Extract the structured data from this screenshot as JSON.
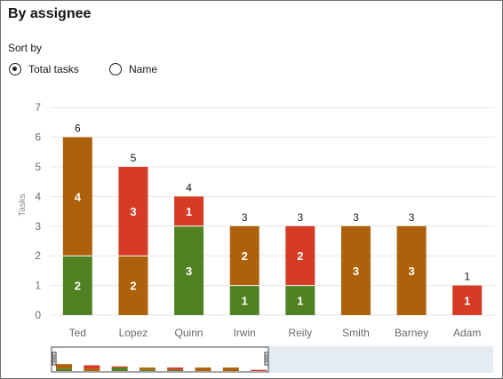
{
  "title": "By assignee",
  "sort": {
    "label": "Sort by",
    "options": [
      {
        "label": "Total tasks",
        "selected": true
      },
      {
        "label": "Name",
        "selected": false
      }
    ]
  },
  "colors": {
    "green": "#508223",
    "brown": "#ae610b",
    "red": "#d63b25",
    "gridline": "#e5e5e5",
    "overview_bg": "#e4ecf1"
  },
  "chart_data": {
    "type": "bar",
    "stacked": true,
    "ylabel": "Tasks",
    "ylim": [
      0,
      7
    ],
    "yticks": [
      0,
      1,
      2,
      3,
      4,
      5,
      6,
      7
    ],
    "grid": true,
    "categories": [
      "Ted",
      "Lopez",
      "Quinn",
      "Irwin",
      "Reily",
      "Smith",
      "Barney",
      "Adam"
    ],
    "totals": [
      6,
      5,
      4,
      3,
      3,
      3,
      3,
      1
    ],
    "segments": [
      [
        {
          "value": 2,
          "color": "green"
        },
        {
          "value": 4,
          "color": "brown"
        }
      ],
      [
        {
          "value": 2,
          "color": "brown"
        },
        {
          "value": 3,
          "color": "red"
        }
      ],
      [
        {
          "value": 3,
          "color": "green"
        },
        {
          "value": 1,
          "color": "red"
        }
      ],
      [
        {
          "value": 1,
          "color": "green"
        },
        {
          "value": 2,
          "color": "brown"
        }
      ],
      [
        {
          "value": 1,
          "color": "green"
        },
        {
          "value": 2,
          "color": "red"
        }
      ],
      [
        {
          "value": 3,
          "color": "brown"
        }
      ],
      [
        {
          "value": 3,
          "color": "brown"
        }
      ],
      [
        {
          "value": 1,
          "color": "red"
        }
      ]
    ]
  }
}
